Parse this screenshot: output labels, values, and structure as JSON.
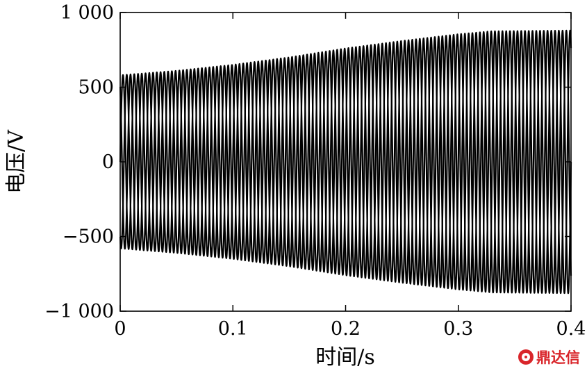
{
  "chart_data": {
    "type": "line",
    "title": "",
    "xlabel": "时间/s",
    "ylabel": "电压/V",
    "xlim": [
      0,
      0.4
    ],
    "ylim": [
      -1000,
      1000
    ],
    "xticks": [
      0,
      0.1,
      0.2,
      0.3,
      0.4
    ],
    "xtick_labels": [
      "0",
      "0.1",
      "0.2",
      "0.3",
      "0.4"
    ],
    "yticks": [
      1000,
      500,
      0,
      -500,
      -1000
    ],
    "ytick_labels": [
      "1 000",
      "500",
      "0",
      "−500",
      "−1 000"
    ],
    "grid": false,
    "legend": "none",
    "phases": 3,
    "frequency_hz": 100,
    "amplitude_envelope": {
      "t": [
        0,
        0.05,
        0.1,
        0.15,
        0.2,
        0.25,
        0.3,
        0.33,
        0.4
      ],
      "amplitude": [
        580,
        610,
        650,
        700,
        760,
        810,
        855,
        875,
        880
      ]
    },
    "color": "#000000"
  },
  "watermark": {
    "text": "鼎达信"
  }
}
